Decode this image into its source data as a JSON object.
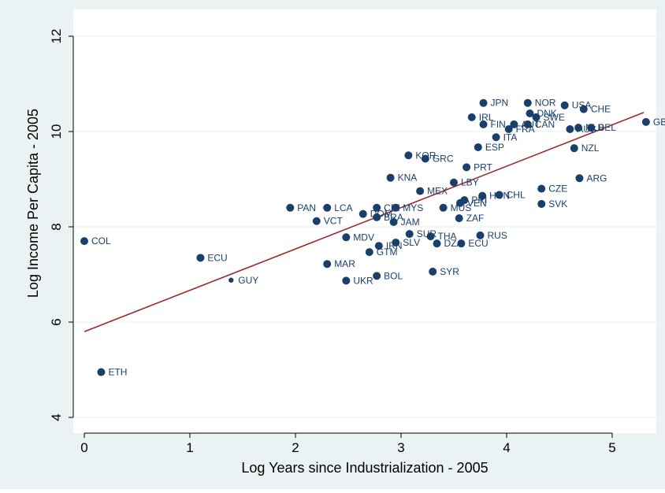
{
  "chart_data": {
    "type": "scatter",
    "title": "",
    "xlabel": "Log Years since Industrialization - 2005",
    "ylabel": "Log Income Per Capita - 2005",
    "xlim": [
      -0.05,
      5.4
    ],
    "ylim": [
      3.85,
      12.1
    ],
    "xticks": [
      "0",
      "1",
      "2",
      "3",
      "4",
      "5"
    ],
    "yticks": [
      "4",
      "6",
      "8",
      "10",
      "12"
    ],
    "grid": true,
    "legend": "none",
    "colors": {
      "background": "#eaf2f3",
      "plot_background": "#ffffff",
      "grid": "#e9eef0",
      "marker": "#1a3f6b",
      "fit_line": "#9b2b2b",
      "text": "#1a3f6b"
    },
    "fit_line": {
      "x": [
        0,
        5.3
      ],
      "y": [
        5.8,
        10.4
      ]
    },
    "points": [
      {
        "label": "COL",
        "x": 0.0,
        "y": 7.7
      },
      {
        "label": "ETH",
        "x": 0.16,
        "y": 4.95
      },
      {
        "label": "ECU",
        "x": 1.1,
        "y": 7.35
      },
      {
        "label": "GUY",
        "x": 1.39,
        "y": 6.88
      },
      {
        "label": "PAN",
        "x": 1.95,
        "y": 8.4
      },
      {
        "label": "VCT",
        "x": 2.2,
        "y": 8.12
      },
      {
        "label": "LCA",
        "x": 2.3,
        "y": 8.4
      },
      {
        "label": "MAR",
        "x": 2.3,
        "y": 7.22
      },
      {
        "label": "MDV",
        "x": 2.48,
        "y": 7.78
      },
      {
        "label": "UKR",
        "x": 2.48,
        "y": 6.87
      },
      {
        "label": "DOM",
        "x": 2.64,
        "y": 8.27
      },
      {
        "label": "GTM",
        "x": 2.7,
        "y": 7.47
      },
      {
        "label": "BRA",
        "x": 2.77,
        "y": 8.2
      },
      {
        "label": "CRI",
        "x": 2.77,
        "y": 8.4
      },
      {
        "label": "IRN",
        "x": 2.79,
        "y": 7.6
      },
      {
        "label": "BOL",
        "x": 2.77,
        "y": 6.97
      },
      {
        "label": "KNA",
        "x": 2.9,
        "y": 9.03
      },
      {
        "label": "JAM",
        "x": 2.93,
        "y": 8.1
      },
      {
        "label": "MYS",
        "x": 2.95,
        "y": 8.4
      },
      {
        "label": "SLV",
        "x": 2.95,
        "y": 7.67
      },
      {
        "label": "KOR",
        "x": 3.07,
        "y": 9.5
      },
      {
        "label": "SUR",
        "x": 3.08,
        "y": 7.85
      },
      {
        "label": "MEX",
        "x": 3.18,
        "y": 8.75
      },
      {
        "label": "GRC",
        "x": 3.23,
        "y": 9.43
      },
      {
        "label": "THA",
        "x": 3.28,
        "y": 7.8
      },
      {
        "label": "SYR",
        "x": 3.3,
        "y": 7.06
      },
      {
        "label": "DZA",
        "x": 3.34,
        "y": 7.65
      },
      {
        "label": "MUS",
        "x": 3.4,
        "y": 8.4
      },
      {
        "label": "LBY",
        "x": 3.5,
        "y": 8.93
      },
      {
        "label": "ZAF",
        "x": 3.55,
        "y": 8.18
      },
      {
        "label": "VEN",
        "x": 3.56,
        "y": 8.5
      },
      {
        "label": "ECU",
        "x": 3.57,
        "y": 7.65
      },
      {
        "label": "PRI",
        "x": 3.6,
        "y": 8.56
      },
      {
        "label": "PRT",
        "x": 3.62,
        "y": 9.25
      },
      {
        "label": "IRL",
        "x": 3.67,
        "y": 10.3
      },
      {
        "label": "ESP",
        "x": 3.73,
        "y": 9.67
      },
      {
        "label": "RUS",
        "x": 3.75,
        "y": 7.82
      },
      {
        "label": "HUN",
        "x": 3.77,
        "y": 8.65
      },
      {
        "label": "FIN",
        "x": 3.78,
        "y": 10.15
      },
      {
        "label": "JPN",
        "x": 3.78,
        "y": 10.6
      },
      {
        "label": "ITA",
        "x": 3.9,
        "y": 9.88
      },
      {
        "label": "CHL",
        "x": 3.93,
        "y": 8.67
      },
      {
        "label": "FRA",
        "x": 4.02,
        "y": 10.05
      },
      {
        "label": "AUT",
        "x": 4.07,
        "y": 10.15
      },
      {
        "label": "CAN",
        "x": 4.2,
        "y": 10.15
      },
      {
        "label": "NOR",
        "x": 4.2,
        "y": 10.6
      },
      {
        "label": "DNK",
        "x": 4.22,
        "y": 10.38
      },
      {
        "label": "SWE",
        "x": 4.28,
        "y": 10.3
      },
      {
        "label": "CZE",
        "x": 4.33,
        "y": 8.8
      },
      {
        "label": "SVK",
        "x": 4.33,
        "y": 8.48
      },
      {
        "label": "USA",
        "x": 4.55,
        "y": 10.55
      },
      {
        "label": "AUS",
        "x": 4.6,
        "y": 10.05
      },
      {
        "label": "NZL",
        "x": 4.64,
        "y": 9.65
      },
      {
        "label": "NLD",
        "x": 4.68,
        "y": 10.08
      },
      {
        "label": "ARG",
        "x": 4.69,
        "y": 9.02
      },
      {
        "label": "CHE",
        "x": 4.73,
        "y": 10.47
      },
      {
        "label": "BEL",
        "x": 4.8,
        "y": 10.08
      },
      {
        "label": "GBR",
        "x": 5.32,
        "y": 10.2
      }
    ]
  }
}
